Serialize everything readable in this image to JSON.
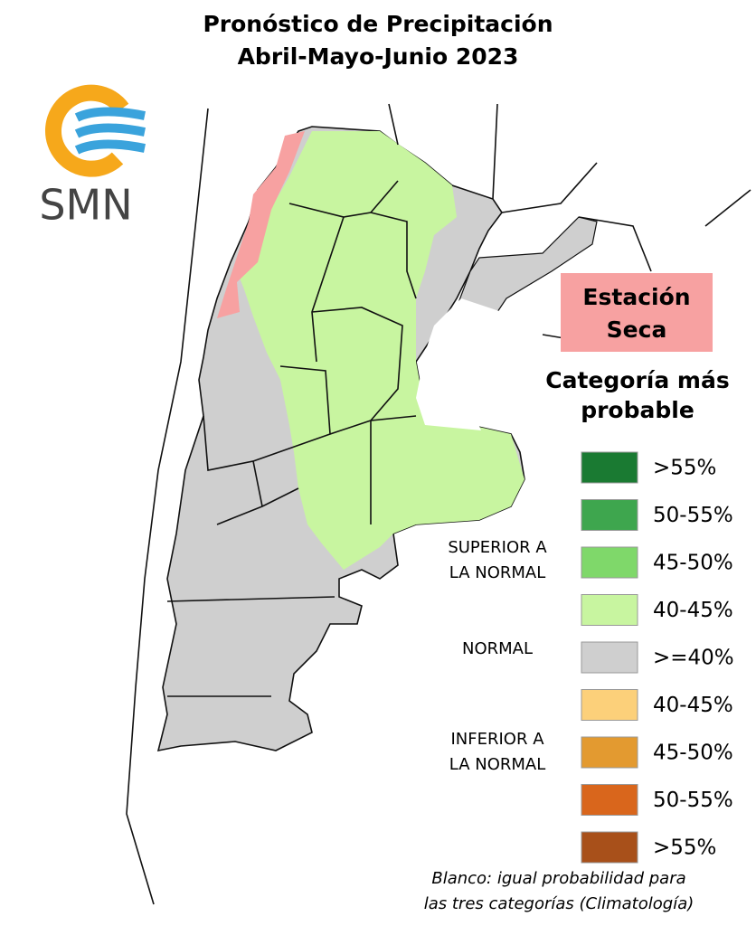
{
  "header": {
    "title": [
      "Pronóstico de Precipitación",
      "Abril-Mayo-Junio 2023"
    ]
  },
  "logo": {
    "text": "SMN"
  },
  "dry_season": {
    "lines": [
      "Estación",
      "Seca"
    ],
    "color": "#f7a1a1"
  },
  "legend": {
    "title": [
      "Categoría más",
      "probable"
    ],
    "items": [
      {
        "label": ">55%",
        "color": "#1a7a32"
      },
      {
        "label": "50-55%",
        "color": "#3ea64e"
      },
      {
        "label": "45-50%",
        "color": "#7fd86a"
      },
      {
        "label": "40-45%",
        "color": "#c8f5a0"
      },
      {
        "label": ">=40%",
        "color": "#cfcfcf"
      },
      {
        "label": "40-45%",
        "color": "#fcd07a"
      },
      {
        "label": "45-50%",
        "color": "#e39a30"
      },
      {
        "label": "50-55%",
        "color": "#d9661c"
      },
      {
        "label": ">55%",
        "color": "#a8501a"
      }
    ],
    "groups": [
      {
        "lines": [
          "SUPERIOR A",
          "LA NORMAL"
        ]
      },
      {
        "lines": [
          "NORMAL"
        ]
      },
      {
        "lines": [
          "INFERIOR A",
          "LA NORMAL"
        ]
      }
    ]
  },
  "note": [
    "Blanco: igual probabilidad para",
    "las tres categorías (Climatología)"
  ]
}
